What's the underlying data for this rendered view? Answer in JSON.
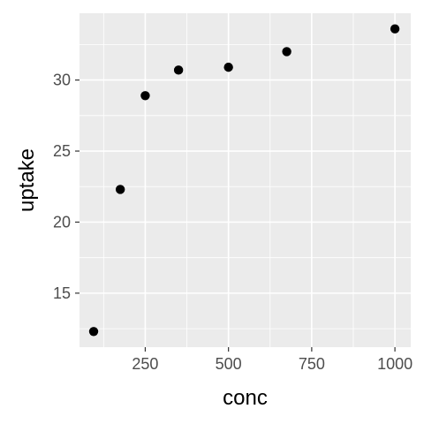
{
  "chart_data": {
    "type": "scatter",
    "title": "",
    "xlabel": "conc",
    "ylabel": "uptake",
    "xlim": [
      52.5,
      1047.5
    ],
    "ylim": [
      11.2,
      34.7
    ],
    "x_ticks": [
      250,
      500,
      750,
      1000
    ],
    "x_tick_labels": [
      "250",
      "500",
      "750",
      "1000"
    ],
    "y_ticks": [
      15,
      20,
      25,
      30
    ],
    "y_tick_labels": [
      "15",
      "20",
      "25",
      "30"
    ],
    "grid": true,
    "legend": "none",
    "point_color": "#000000",
    "panel_color": "#ebebeb",
    "points": [
      {
        "x": 95,
        "y": 12.3
      },
      {
        "x": 175,
        "y": 22.3
      },
      {
        "x": 250,
        "y": 28.9
      },
      {
        "x": 350,
        "y": 30.7
      },
      {
        "x": 500,
        "y": 30.9
      },
      {
        "x": 675,
        "y": 32.0
      },
      {
        "x": 1000,
        "y": 33.6
      }
    ]
  }
}
